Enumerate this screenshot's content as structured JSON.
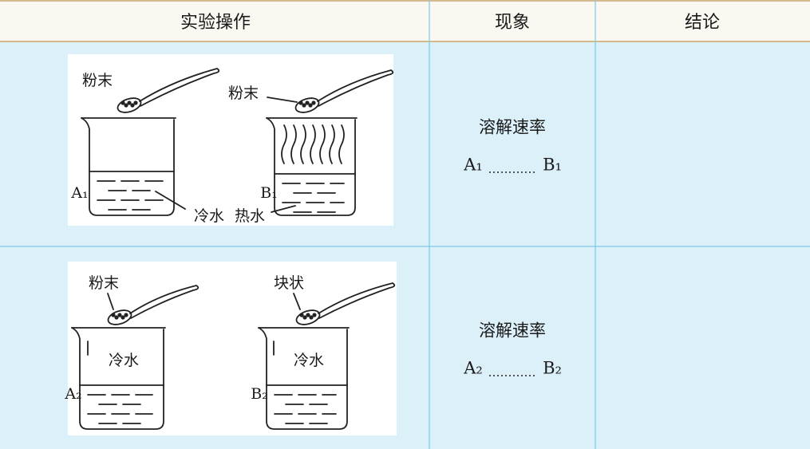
{
  "table": {
    "header": [
      "实验操作",
      "现象",
      "结论"
    ],
    "rows": [
      {
        "figure": {
          "labels": [
            "粉末",
            "粉末",
            "A₁",
            "B₁",
            "冷水",
            "热水"
          ]
        },
        "phenomenon": {
          "text": "溶解速率",
          "left": "A₁",
          "right": "B₁"
        }
      },
      {
        "figure": {
          "labels": [
            "粉末",
            "块状",
            "冷水",
            "冷水",
            "A₂",
            "B₂"
          ]
        },
        "phenomenon": {
          "text": "溶解速率",
          "left": "A₂",
          "right": "B₂"
        }
      }
    ]
  }
}
